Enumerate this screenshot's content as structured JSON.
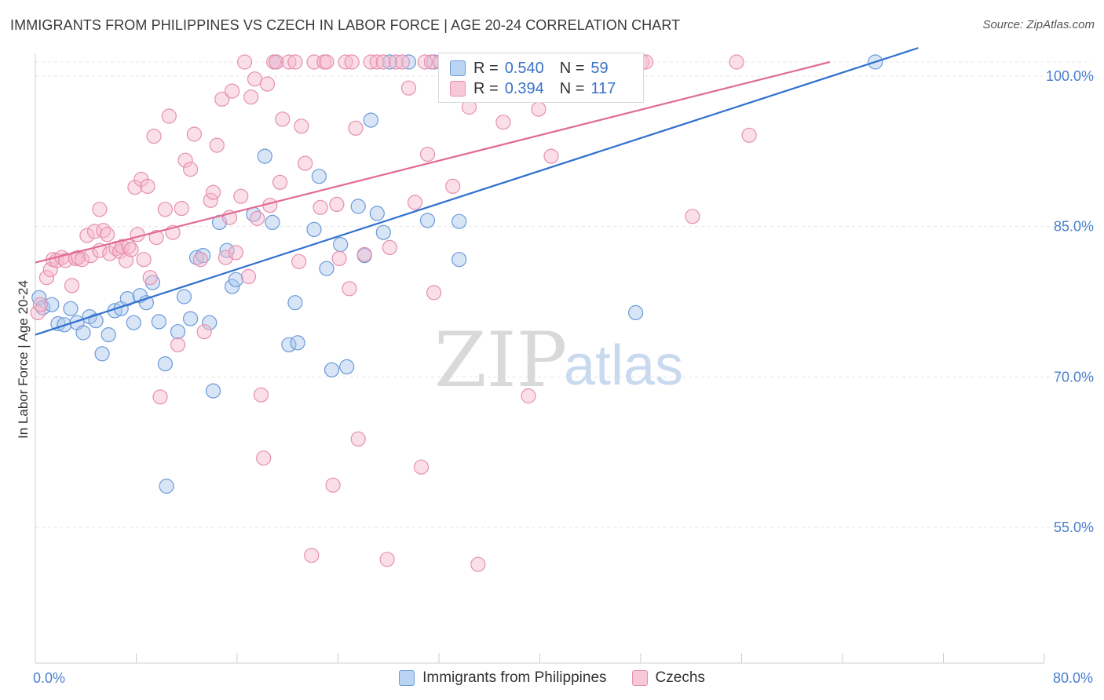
{
  "chart_data": {
    "type": "scatter",
    "title": "IMMIGRANTS FROM PHILIPPINES VS CZECH IN LABOR FORCE | AGE 20-24 CORRELATION CHART",
    "source": "Source: ZipAtlas.com",
    "ylabel": "In Labor Force | Age 20-24",
    "xlim": [
      0,
      80
    ],
    "ylim": [
      40,
      102
    ],
    "x_ticks": [
      "0.0%",
      "80.0%"
    ],
    "y_ticks": [
      {
        "value": 100,
        "label": "100.0%"
      },
      {
        "value": 85,
        "label": "85.0%"
      },
      {
        "value": 70,
        "label": "70.0%"
      },
      {
        "value": 55,
        "label": "55.0%"
      }
    ],
    "grid": true,
    "legend_position": "bottom",
    "watermark": {
      "zip": "ZIP",
      "atlas": "atlas"
    },
    "series": [
      {
        "name": "Immigrants from Philippines",
        "color": "#6a9ad8",
        "fill": "#a9c6ee",
        "line_color": "#2f6fcf",
        "R": "0.540",
        "N": "59",
        "trend": [
          [
            0,
            72.8
          ],
          [
            70,
            101.4
          ]
        ],
        "points": [
          [
            0.3,
            76.5
          ],
          [
            0.6,
            75.5
          ],
          [
            1.3,
            75.8
          ],
          [
            1.8,
            73.9
          ],
          [
            2.3,
            73.8
          ],
          [
            2.8,
            75.4
          ],
          [
            3.3,
            74.0
          ],
          [
            3.8,
            73.0
          ],
          [
            4.3,
            74.6
          ],
          [
            4.8,
            74.2
          ],
          [
            5.3,
            70.9
          ],
          [
            5.8,
            72.8
          ],
          [
            6.3,
            75.2
          ],
          [
            6.8,
            75.4
          ],
          [
            7.3,
            76.4
          ],
          [
            7.8,
            74.0
          ],
          [
            8.3,
            76.7
          ],
          [
            8.8,
            76.0
          ],
          [
            9.3,
            78.0
          ],
          [
            9.8,
            74.1
          ],
          [
            10.3,
            69.9
          ],
          [
            10.4,
            57.7
          ],
          [
            11.3,
            73.1
          ],
          [
            11.8,
            76.6
          ],
          [
            12.3,
            74.4
          ],
          [
            12.8,
            80.5
          ],
          [
            13.3,
            80.7
          ],
          [
            13.8,
            74.0
          ],
          [
            14.1,
            67.2
          ],
          [
            14.6,
            84.0
          ],
          [
            15.2,
            81.2
          ],
          [
            15.6,
            77.6
          ],
          [
            15.9,
            78.3
          ],
          [
            17.3,
            84.8
          ],
          [
            18.2,
            90.6
          ],
          [
            18.8,
            84.0
          ],
          [
            19.1,
            100.0
          ],
          [
            20.1,
            71.8
          ],
          [
            20.6,
            76.0
          ],
          [
            20.8,
            72.0
          ],
          [
            22.1,
            83.3
          ],
          [
            22.5,
            88.6
          ],
          [
            23.1,
            79.4
          ],
          [
            23.5,
            69.3
          ],
          [
            24.2,
            81.8
          ],
          [
            24.7,
            69.6
          ],
          [
            25.6,
            85.6
          ],
          [
            26.1,
            80.7
          ],
          [
            26.6,
            94.2
          ],
          [
            27.1,
            84.9
          ],
          [
            27.6,
            83.0
          ],
          [
            28.1,
            100.0
          ],
          [
            29.6,
            100.0
          ],
          [
            31.1,
            84.2
          ],
          [
            31.6,
            100.0
          ],
          [
            33.6,
            84.1
          ],
          [
            33.6,
            80.3
          ],
          [
            47.6,
            75.0
          ],
          [
            66.6,
            100.0
          ]
        ]
      },
      {
        "name": "Czechs",
        "color": "#e58fb0",
        "fill": "#f6b7cc",
        "line_color": "#e06b95",
        "R": "0.394",
        "N": "117",
        "trend": [
          [
            0,
            80.0
          ],
          [
            63,
            100.0
          ]
        ],
        "points": [
          [
            0.2,
            75.0
          ],
          [
            0.4,
            75.8
          ],
          [
            0.9,
            78.5
          ],
          [
            1.2,
            79.3
          ],
          [
            1.4,
            80.3
          ],
          [
            1.7,
            80.2
          ],
          [
            2.1,
            80.5
          ],
          [
            2.4,
            80.2
          ],
          [
            2.9,
            77.7
          ],
          [
            3.2,
            80.4
          ],
          [
            3.4,
            80.5
          ],
          [
            3.7,
            80.3
          ],
          [
            4.1,
            82.7
          ],
          [
            4.4,
            80.7
          ],
          [
            4.7,
            83.1
          ],
          [
            5.1,
            81.2
          ],
          [
            5.1,
            85.3
          ],
          [
            5.4,
            83.2
          ],
          [
            5.7,
            82.8
          ],
          [
            5.9,
            80.9
          ],
          [
            6.4,
            81.4
          ],
          [
            6.7,
            81.1
          ],
          [
            6.9,
            81.6
          ],
          [
            7.2,
            80.2
          ],
          [
            7.4,
            81.6
          ],
          [
            7.6,
            81.3
          ],
          [
            7.9,
            87.5
          ],
          [
            8.1,
            82.8
          ],
          [
            8.4,
            88.3
          ],
          [
            8.6,
            80.3
          ],
          [
            8.9,
            87.6
          ],
          [
            9.1,
            78.5
          ],
          [
            9.4,
            92.6
          ],
          [
            9.6,
            82.5
          ],
          [
            9.9,
            66.6
          ],
          [
            10.3,
            85.3
          ],
          [
            10.6,
            94.6
          ],
          [
            10.9,
            83.0
          ],
          [
            11.3,
            71.8
          ],
          [
            11.6,
            85.4
          ],
          [
            11.9,
            90.2
          ],
          [
            12.3,
            89.3
          ],
          [
            12.6,
            92.8
          ],
          [
            13.1,
            80.3
          ],
          [
            13.4,
            73.1
          ],
          [
            13.9,
            86.2
          ],
          [
            14.1,
            87.0
          ],
          [
            14.4,
            91.7
          ],
          [
            14.8,
            96.3
          ],
          [
            15.1,
            80.5
          ],
          [
            15.4,
            84.5
          ],
          [
            15.6,
            97.1
          ],
          [
            15.9,
            81.0
          ],
          [
            16.3,
            86.6
          ],
          [
            16.6,
            100.0
          ],
          [
            16.9,
            78.6
          ],
          [
            17.1,
            96.5
          ],
          [
            17.4,
            98.3
          ],
          [
            17.6,
            84.4
          ],
          [
            17.9,
            66.8
          ],
          [
            18.1,
            60.5
          ],
          [
            18.4,
            97.8
          ],
          [
            18.6,
            85.7
          ],
          [
            18.9,
            100.0
          ],
          [
            19.1,
            100.0
          ],
          [
            19.4,
            88.0
          ],
          [
            19.6,
            94.3
          ],
          [
            20.1,
            100.0
          ],
          [
            20.6,
            100.0
          ],
          [
            20.9,
            80.1
          ],
          [
            21.1,
            93.6
          ],
          [
            21.4,
            89.9
          ],
          [
            21.9,
            50.8
          ],
          [
            22.1,
            100.0
          ],
          [
            22.6,
            85.5
          ],
          [
            22.9,
            100.0
          ],
          [
            23.1,
            100.0
          ],
          [
            23.6,
            57.8
          ],
          [
            23.9,
            85.8
          ],
          [
            24.1,
            80.4
          ],
          [
            24.6,
            100.0
          ],
          [
            24.9,
            77.4
          ],
          [
            25.1,
            100.0
          ],
          [
            25.4,
            93.4
          ],
          [
            25.6,
            62.4
          ],
          [
            26.1,
            80.8
          ],
          [
            26.6,
            100.0
          ],
          [
            27.1,
            100.0
          ],
          [
            27.6,
            100.0
          ],
          [
            27.9,
            50.4
          ],
          [
            28.1,
            81.5
          ],
          [
            28.6,
            100.0
          ],
          [
            29.1,
            100.0
          ],
          [
            29.6,
            97.4
          ],
          [
            30.1,
            86.0
          ],
          [
            30.6,
            59.6
          ],
          [
            30.9,
            100.0
          ],
          [
            31.1,
            90.8
          ],
          [
            31.4,
            100.0
          ],
          [
            31.6,
            77.0
          ],
          [
            32.1,
            100.0
          ],
          [
            33.1,
            87.6
          ],
          [
            34.1,
            100.0
          ],
          [
            34.4,
            95.5
          ],
          [
            34.6,
            100.0
          ],
          [
            34.9,
            100.0
          ],
          [
            35.1,
            49.9
          ],
          [
            37.1,
            94.0
          ],
          [
            37.6,
            100.0
          ],
          [
            39.1,
            66.7
          ],
          [
            39.9,
            95.3
          ],
          [
            40.9,
            90.6
          ],
          [
            48.1,
            100.0
          ],
          [
            48.4,
            100.0
          ],
          [
            52.1,
            84.6
          ],
          [
            55.6,
            100.0
          ],
          [
            56.6,
            92.7
          ]
        ]
      }
    ]
  }
}
